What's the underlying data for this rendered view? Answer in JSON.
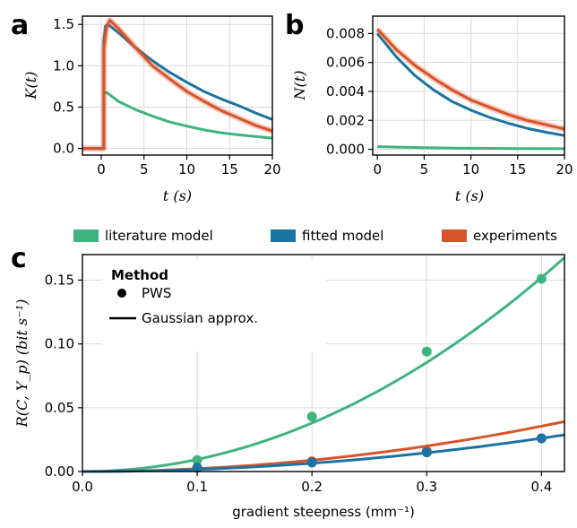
{
  "colors": {
    "literature": "#3fb380",
    "fitted": "#1a73a0",
    "experiments": "#d9532a"
  },
  "panels": {
    "a": "a",
    "b": "b",
    "c": "c"
  },
  "legend_top": {
    "literature": "literature model",
    "fitted": "fitted model",
    "experiments": "experiments"
  },
  "legend_c": {
    "title": "Method",
    "pws": "PWS",
    "gaussian": "Gaussian approx."
  },
  "chart_data": [
    {
      "type": "line",
      "panel": "a",
      "xlabel": "t (s)",
      "ylabel": "K(t)",
      "xlim": [
        -2.2,
        20
      ],
      "ylim": [
        -0.08,
        1.6
      ],
      "xticks": [
        0,
        5,
        10,
        15,
        20
      ],
      "yticks": [
        "0.0",
        "0.5",
        "1.0",
        "1.5"
      ],
      "grid": true,
      "series": [
        {
          "key": "literature",
          "x": [
            -2.2,
            0.3,
            0.3,
            0.6,
            2,
            4,
            6,
            8,
            10,
            12,
            14,
            16,
            18,
            20
          ],
          "y": [
            0,
            0,
            0.66,
            0.68,
            0.57,
            0.47,
            0.39,
            0.32,
            0.27,
            0.225,
            0.19,
            0.165,
            0.145,
            0.125
          ]
        },
        {
          "key": "fitted",
          "x": [
            -2.2,
            0.3,
            0.3,
            0.5,
            0.8,
            2,
            4,
            6,
            8,
            10,
            12,
            14,
            16,
            18,
            20
          ],
          "y": [
            0,
            0,
            1.3,
            1.48,
            1.5,
            1.4,
            1.22,
            1.06,
            0.92,
            0.8,
            0.69,
            0.6,
            0.52,
            0.43,
            0.35
          ]
        },
        {
          "key": "experiments",
          "x": [
            -2.2,
            0.3,
            0.3,
            0.6,
            1,
            2,
            4,
            6,
            8,
            10,
            12,
            14,
            16,
            18,
            20
          ],
          "y": [
            0,
            0,
            1.2,
            1.45,
            1.55,
            1.45,
            1.22,
            1.0,
            0.84,
            0.69,
            0.57,
            0.46,
            0.37,
            0.28,
            0.21
          ]
        }
      ]
    },
    {
      "type": "line",
      "panel": "b",
      "xlabel": "t (s)",
      "ylabel": "N(t)",
      "xlim": [
        -0.5,
        20
      ],
      "ylim": [
        -0.0004,
        0.0092
      ],
      "xticks": [
        0,
        5,
        10,
        15,
        20
      ],
      "yticks": [
        "0.000",
        "0.002",
        "0.004",
        "0.006",
        "0.008"
      ],
      "grid": true,
      "series": [
        {
          "key": "literature",
          "x": [
            0,
            5,
            10,
            15,
            20
          ],
          "y": [
            0.00018,
            0.00011,
            7e-05,
            5e-05,
            4e-05
          ]
        },
        {
          "key": "fitted",
          "x": [
            0,
            2,
            4,
            6,
            8,
            10,
            12,
            14,
            16,
            18,
            20
          ],
          "y": [
            0.008,
            0.0064,
            0.0051,
            0.0041,
            0.0033,
            0.0027,
            0.0022,
            0.0018,
            0.00145,
            0.00118,
            0.00095
          ]
        },
        {
          "key": "experiments",
          "x": [
            0,
            2,
            4,
            6,
            8,
            10,
            12,
            14,
            16,
            18,
            20
          ],
          "y": [
            0.0083,
            0.0069,
            0.0058,
            0.0049,
            0.0041,
            0.0034,
            0.0029,
            0.0024,
            0.002,
            0.0017,
            0.0014
          ]
        }
      ]
    },
    {
      "type": "scatter",
      "panel": "c",
      "xlabel": "gradient steepness (mm⁻¹)",
      "ylabel": "R(C, Y_p) (bit s⁻¹)",
      "xlim": [
        0,
        0.42
      ],
      "ylim": [
        0,
        0.17
      ],
      "xticks": [
        "0.0",
        "0.1",
        "0.2",
        "0.3",
        "0.4"
      ],
      "yticks": [
        "0.00",
        "0.05",
        "0.10",
        "0.15"
      ],
      "grid": true,
      "series": [
        {
          "key": "literature",
          "method": "PWS",
          "x": [
            0.1,
            0.2,
            0.3,
            0.4
          ],
          "y": [
            0.009,
            0.043,
            0.094,
            0.151
          ]
        },
        {
          "key": "experiments",
          "method": "PWS",
          "x": [
            0.1,
            0.2,
            0.3,
            0.4
          ],
          "y": [
            0.003,
            0.008,
            0.016,
            0.026
          ]
        },
        {
          "key": "fitted",
          "method": "PWS",
          "x": [
            0.1,
            0.2,
            0.3,
            0.4
          ],
          "y": [
            0.003,
            0.007,
            0.015,
            0.026
          ]
        },
        {
          "key": "literature",
          "method": "Gaussian approx.",
          "curve_coef": 0.95
        },
        {
          "key": "experiments",
          "method": "Gaussian approx.",
          "curve_coef": 0.222
        },
        {
          "key": "fitted",
          "method": "Gaussian approx.",
          "curve_coef": 0.163
        }
      ]
    }
  ]
}
